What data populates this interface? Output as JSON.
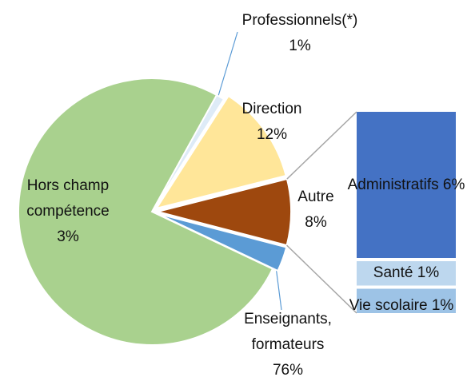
{
  "chart_data": [
    {
      "type": "pie",
      "categories": [
        "Professionnels(*)",
        "Direction",
        "Autre",
        "Hors champ compétence",
        "Enseignants, formateurs"
      ],
      "values": [
        1,
        12,
        8,
        3,
        76
      ],
      "value_labels": [
        "1%",
        "12%",
        "8%",
        "3%",
        "76%"
      ],
      "colors": [
        "#deebf7",
        "#ffe699",
        "#9e480e",
        "#5b9bd5",
        "#a9d18e"
      ]
    },
    {
      "type": "stacked-bar",
      "categories": [
        "Administratifs",
        "Santé",
        "Vie scolaire"
      ],
      "values": [
        6,
        1,
        1
      ],
      "value_labels": [
        "6%",
        "1%",
        "1%"
      ],
      "colors": [
        "#4472c4",
        "#bdd7ee",
        "#9dc3e6"
      ]
    }
  ]
}
